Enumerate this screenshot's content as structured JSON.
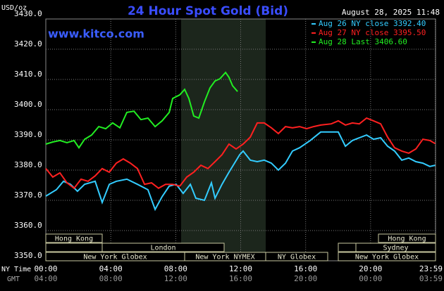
{
  "chart_data": {
    "type": "line",
    "title": "24 Hour Spot Gold (Bid)",
    "timestamp": "August 28, 2025 11:48",
    "watermark": "www.kitco.com",
    "y_label": "USD/oz",
    "x_label": "NY Time",
    "x2_label": "GMT",
    "xlim": [
      0,
      24
    ],
    "ylim": [
      3350,
      3430
    ],
    "xticks": [
      {
        "value": 0,
        "label": "00:00"
      },
      {
        "value": 4,
        "label": "04:00"
      },
      {
        "value": 8,
        "label": "08:00"
      },
      {
        "value": 12,
        "label": "12:00"
      },
      {
        "value": 16,
        "label": "16:00"
      },
      {
        "value": 20,
        "label": "20:00"
      },
      {
        "value": 23.98,
        "label": "23:59"
      }
    ],
    "x2tick_labels": [
      "04:00",
      "08:00",
      "12:00",
      "16:00",
      "20:00",
      "00:00",
      "03:59"
    ],
    "yticks": [
      {
        "value": 3350,
        "label": "3350.0"
      },
      {
        "value": 3360,
        "label": "3360.0"
      },
      {
        "value": 3370,
        "label": "3370.0"
      },
      {
        "value": 3380,
        "label": "3380.0"
      },
      {
        "value": 3390,
        "label": "3390.0"
      },
      {
        "value": 3400,
        "label": "3400.0"
      },
      {
        "value": 3410,
        "label": "3410.0"
      },
      {
        "value": 3420,
        "label": "3420.0"
      },
      {
        "value": 3430,
        "label": "3430.0"
      }
    ],
    "grid": true,
    "sessions": [
      "Hong Kong",
      "London",
      "New York Globex",
      "New York NYMEX",
      "NY Globex",
      "New York Globex",
      "Sydney",
      "Hong Kong"
    ],
    "series": [
      {
        "name": "Aug 26 NY close 3392.40",
        "color": "#33ccff",
        "x": [
          0,
          0.65,
          1.09,
          1.52,
          1.95,
          2.39,
          3.04,
          3.47,
          3.91,
          4.34,
          4.99,
          5.64,
          6.29,
          6.73,
          7.16,
          7.6,
          8.03,
          8.46,
          8.9,
          9.24,
          9.77,
          10.2,
          10.42,
          10.85,
          11.28,
          11.94,
          12.15,
          12.59,
          13.02,
          13.45,
          13.89,
          14.32,
          14.76,
          15.19,
          15.63,
          16.28,
          16.93,
          17.58,
          18.01,
          18.45,
          18.88,
          19.31,
          19.75,
          20.18,
          20.62,
          21.05,
          21.48,
          21.92,
          22.35,
          22.79,
          23.22,
          23.65,
          23.98
        ],
        "values": [
          3371.4,
          3373.5,
          3376.3,
          3375.3,
          3373.0,
          3375.3,
          3376.3,
          3369.3,
          3375.3,
          3376.3,
          3377.0,
          3375.3,
          3373.5,
          3367.0,
          3371.2,
          3374.7,
          3375.3,
          3372.3,
          3375.3,
          3370.7,
          3370.0,
          3375.8,
          3370.7,
          3375.3,
          3379.3,
          3385.1,
          3386.3,
          3383.3,
          3382.8,
          3383.3,
          3382.3,
          3380.0,
          3382.3,
          3386.3,
          3387.4,
          3389.8,
          3392.6,
          3392.6,
          3392.6,
          3387.9,
          3389.8,
          3390.7,
          3391.6,
          3390.2,
          3390.7,
          3387.9,
          3386.3,
          3383.3,
          3384.0,
          3382.8,
          3382.3,
          3381.2,
          3381.6
        ]
      },
      {
        "name": "Aug 27 NY close 3395.50",
        "color": "#ff2020",
        "x": [
          0,
          0.43,
          0.87,
          1.3,
          1.74,
          2.17,
          2.6,
          3.04,
          3.47,
          3.91,
          4.34,
          4.77,
          5.21,
          5.64,
          6.08,
          6.51,
          6.94,
          7.38,
          7.81,
          8.25,
          8.68,
          9.11,
          9.55,
          9.98,
          10.42,
          10.85,
          11.28,
          11.72,
          12.15,
          12.59,
          13.02,
          13.45,
          13.89,
          14.32,
          14.76,
          15.19,
          15.63,
          16.06,
          16.49,
          16.93,
          17.58,
          18.01,
          18.45,
          18.88,
          19.31,
          19.75,
          20.18,
          20.62,
          21.05,
          21.48,
          21.92,
          22.35,
          22.79,
          23.22,
          23.65,
          23.98
        ],
        "values": [
          3380.5,
          3377.7,
          3379.1,
          3375.8,
          3374.0,
          3377.0,
          3376.3,
          3378.1,
          3380.5,
          3379.3,
          3382.3,
          3383.7,
          3382.3,
          3380.5,
          3375.3,
          3375.8,
          3374.0,
          3375.3,
          3375.3,
          3374.7,
          3377.7,
          3379.3,
          3381.6,
          3380.5,
          3382.8,
          3385.1,
          3388.6,
          3387.0,
          3388.6,
          3390.9,
          3395.6,
          3395.6,
          3394.0,
          3392.1,
          3394.4,
          3394.0,
          3394.4,
          3393.7,
          3394.4,
          3394.9,
          3395.3,
          3396.3,
          3394.9,
          3395.6,
          3395.3,
          3397.2,
          3396.3,
          3395.3,
          3390.9,
          3387.4,
          3386.3,
          3385.6,
          3387.0,
          3390.2,
          3389.8,
          3388.8
        ]
      },
      {
        "name": "Aug 28 Last 3406.60",
        "color": "#22ee22",
        "x": [
          0,
          0.43,
          0.87,
          1.3,
          1.74,
          2.04,
          2.39,
          2.82,
          3.26,
          3.69,
          4.12,
          4.56,
          4.99,
          5.43,
          5.86,
          6.29,
          6.73,
          7.16,
          7.6,
          7.81,
          8.25,
          8.55,
          8.81,
          9.11,
          9.42,
          9.77,
          10.11,
          10.42,
          10.72,
          11.07,
          11.28,
          11.5,
          11.81
        ],
        "values": [
          3388.6,
          3389.3,
          3389.8,
          3389.1,
          3389.8,
          3387.4,
          3390.2,
          3391.6,
          3394.4,
          3393.7,
          3395.6,
          3394.0,
          3399.1,
          3399.5,
          3396.7,
          3397.2,
          3394.4,
          3396.3,
          3399.1,
          3403.7,
          3404.9,
          3406.7,
          3403.7,
          3397.9,
          3397.2,
          3402.6,
          3407.2,
          3409.5,
          3410.2,
          3412.3,
          3410.7,
          3407.9,
          3406.0
        ]
      }
    ]
  }
}
